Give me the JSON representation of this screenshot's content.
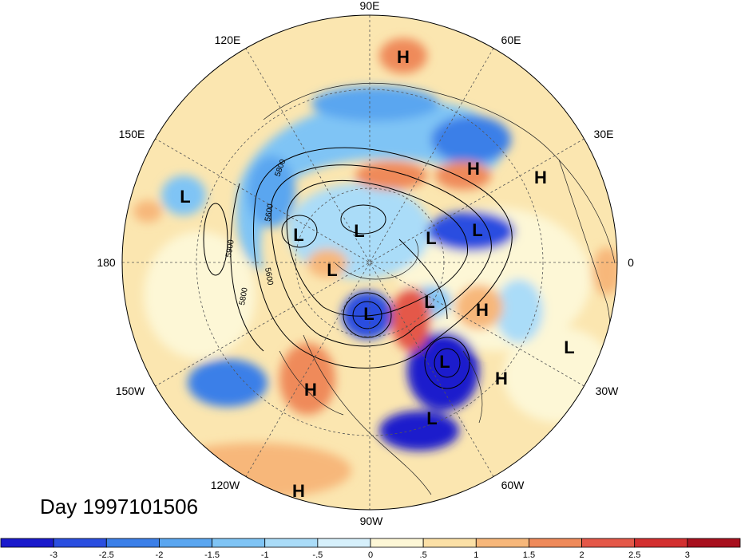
{
  "title": "Day 1997101506",
  "longitude_labels": [
    "90E",
    "60E",
    "30E",
    "0",
    "30W",
    "60W",
    "90W",
    "120W",
    "150W",
    "180",
    "150E",
    "120E"
  ],
  "contour_labels": [
    "5800",
    "5600",
    "5600",
    "5900",
    "5800"
  ],
  "pressure_centers": [
    {
      "type": "H"
    },
    {
      "type": "L"
    },
    {
      "type": "H"
    },
    {
      "type": "H"
    },
    {
      "type": "L"
    },
    {
      "type": "L"
    },
    {
      "type": "L"
    },
    {
      "type": "L"
    },
    {
      "type": "L"
    },
    {
      "type": "L"
    },
    {
      "type": "L"
    },
    {
      "type": "H"
    },
    {
      "type": "L"
    },
    {
      "type": "H"
    },
    {
      "type": "L"
    },
    {
      "type": "H"
    },
    {
      "type": "L"
    },
    {
      "type": "H"
    }
  ],
  "colorbar": {
    "tick_labels": [
      "-3",
      "-2.5",
      "-2",
      "-1.5",
      "-1",
      "-.5",
      "0",
      ".5",
      "1",
      "1.5",
      "2",
      "2.5",
      "3"
    ],
    "colors": [
      "#1a1acc",
      "#2a4ee0",
      "#3b7fe8",
      "#5aa6f0",
      "#7fc4f5",
      "#aadcf8",
      "#d6f0fb",
      "#fdf7d6",
      "#fbe0a6",
      "#f7b77a",
      "#ef8a5a",
      "#e45848",
      "#d32f2f",
      "#a8101e"
    ]
  },
  "anomaly_colors": {
    "strong_negative": "#1a1acc",
    "negative": "#5aa6f0",
    "weak_negative": "#aadcf8",
    "weak_positive": "#fbe0a6",
    "positive": "#f7b77a",
    "strong_positive": "#e45848"
  }
}
